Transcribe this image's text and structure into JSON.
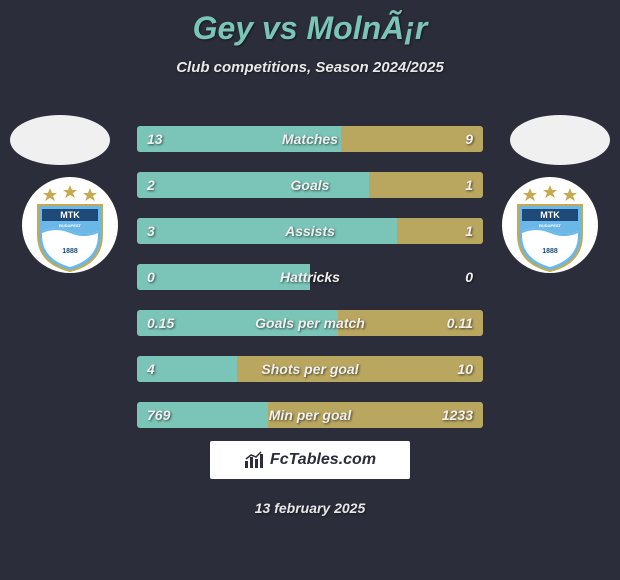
{
  "header": {
    "title": "Gey vs MolnÃ¡r",
    "subtitle": "Club competitions, Season 2024/2025"
  },
  "colors": {
    "background": "#2b2d3a",
    "title": "#7bc4b8",
    "text": "#e8e8e8",
    "bar_left": "#7bc4b8",
    "bar_right": "#b9a65f",
    "crest_blue": "#6bb8e8",
    "crest_gold": "#c9a94f",
    "crest_navy": "#1e4a7a",
    "logo_bg": "#ffffff"
  },
  "bar_config": {
    "total_width": 346,
    "height": 26,
    "gap": 20,
    "fontsize": 14
  },
  "stats": [
    {
      "label": "Matches",
      "left_val": "13",
      "right_val": "9",
      "left_pct": 59,
      "right_pct": 41
    },
    {
      "label": "Goals",
      "left_val": "2",
      "right_val": "1",
      "left_pct": 67,
      "right_pct": 33
    },
    {
      "label": "Assists",
      "left_val": "3",
      "right_val": "1",
      "left_pct": 75,
      "right_pct": 25
    },
    {
      "label": "Hattricks",
      "left_val": "0",
      "right_val": "0",
      "left_pct": 50,
      "right_pct": 0
    },
    {
      "label": "Goals per match",
      "left_val": "0.15",
      "right_val": "0.11",
      "left_pct": 58,
      "right_pct": 42
    },
    {
      "label": "Shots per goal",
      "left_val": "4",
      "right_val": "10",
      "left_pct": 29,
      "right_pct": 71
    },
    {
      "label": "Min per goal",
      "left_val": "769",
      "right_val": "1233",
      "left_pct": 38,
      "right_pct": 62
    }
  ],
  "footer": {
    "site": "FcTables.com",
    "date": "13 february 2025"
  },
  "crest": {
    "text_top": "MTK",
    "text_mid": "BUDAPEST"
  }
}
